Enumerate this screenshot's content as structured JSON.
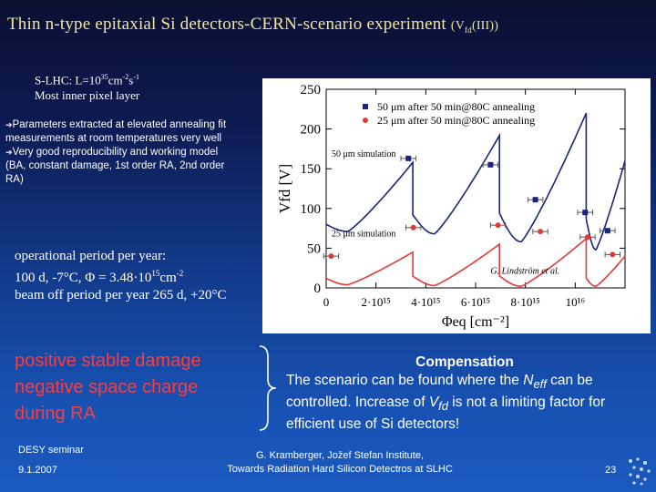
{
  "title": {
    "main": "Thin n-type epitaxial Si detectors-CERN-scenario experiment",
    "sub_prefix": "(V",
    "sub_index": "fd",
    "sub_suffix": "(III))"
  },
  "slhc": {
    "line1_prefix": "S-LHC: L=10",
    "line1_exp1": "35",
    "line1_mid": "cm",
    "line1_exp2": "-2",
    "line1_unit": "s",
    "line1_exp3": "-1",
    "line2": "Most inner pixel layer"
  },
  "params": {
    "arrow": "➔",
    "item1": "Parameters extracted at elevated annealing fit measurements at room temperatures very well",
    "item2": "Very good reproducibility and working model",
    "item3": "(BA, constant damage, 1st order RA, 2nd order RA)"
  },
  "operational": {
    "line1": "operational period per year:",
    "line2_prefix": "100 d, -7°C, Φ = 3.48·10",
    "line2_exp": "15",
    "line2_unit": "cm",
    "line2_unit_exp": "-2",
    "line3": "beam off period per year 265 d, +20°C"
  },
  "damage": {
    "line1": "positive stable damage",
    "line2": "negative space charge",
    "line3": "during RA"
  },
  "compensation": {
    "heading": "Compensation",
    "t1": "The scenario can be found where the ",
    "n": "N",
    "eff": "eff",
    "t2": " can be controlled. Increase of ",
    "v": "V",
    "fd": "fd",
    "t3": " is not a limiting factor for efficient use of Si detectors!"
  },
  "footer": {
    "seminar": "DESY seminar",
    "date": "9.1.2007",
    "author_line1": "G. Kramberger, Jožef Stefan Institute,",
    "author_line2": "Towards Radiation Hard Silicon Detectros at SLHC",
    "page": "23"
  },
  "chart_data": {
    "type": "line",
    "xlabel": "Φeq [cm⁻²]",
    "ylabel": "Vfd [V]",
    "xlim": [
      0,
      1.2e+16
    ],
    "ylim": [
      0,
      250
    ],
    "x_tick_labels": [
      "0",
      "2·10¹⁵",
      "4·10¹⁵",
      "6·10¹⁵",
      "8·10¹⁵",
      "10¹⁶"
    ],
    "x_ticks": [
      0,
      2000000000000000.0,
      4000000000000000.0,
      6000000000000000.0,
      8000000000000000.0,
      1e+16
    ],
    "y_ticks": [
      0,
      50,
      100,
      150,
      200,
      250
    ],
    "legend": [
      "50 μm after 50 min@80C annealing",
      "25 μm after 50 min@80C annealing"
    ],
    "annotations": [
      "50 μm simulation",
      "25 μm simulation",
      "G. Lindström et al."
    ],
    "series": [
      {
        "name": "50 μm after 50 min@80C annealing",
        "marker": "square",
        "color": "#1a237e",
        "points": [
          [
            3300000000000000.0,
            163
          ],
          [
            6600000000000000.0,
            155
          ],
          [
            8400000000000000.0,
            111
          ],
          [
            1.04e+16,
            95
          ],
          [
            1.13e+16,
            72
          ]
        ],
        "xerr": 300000000000000.0
      },
      {
        "name": "25 μm after 50 min@80C annealing",
        "marker": "circle",
        "color": "#e53935",
        "points": [
          [
            200000000000000.0,
            40
          ],
          [
            3500000000000000.0,
            76
          ],
          [
            6900000000000000.0,
            79
          ],
          [
            8600000000000000.0,
            71
          ],
          [
            1.05e+16,
            64
          ],
          [
            1.15e+16,
            42
          ]
        ],
        "xerr": 300000000000000.0
      },
      {
        "name": "50 μm simulation",
        "color": "#1a237e",
        "cycle_breaks": [
          0,
          3480000000000000.0,
          6960000000000000.0,
          1.044e+16,
          1.2e+16
        ],
        "cycle_start": [
          80,
          92,
          94,
          87
        ],
        "cycle_min": [
          71,
          68,
          58,
          48
        ],
        "cycle_end": [
          158,
          192,
          220,
          160
        ]
      },
      {
        "name": "25 μm simulation",
        "color": "#e53935",
        "cycle_breaks": [
          0,
          3480000000000000.0,
          6960000000000000.0,
          1.044e+16,
          1.2e+16
        ],
        "cycle_start": [
          12,
          15,
          15,
          12
        ],
        "cycle_min": [
          4,
          3,
          2,
          2
        ],
        "cycle_end": [
          45,
          55,
          62,
          40
        ]
      }
    ]
  }
}
